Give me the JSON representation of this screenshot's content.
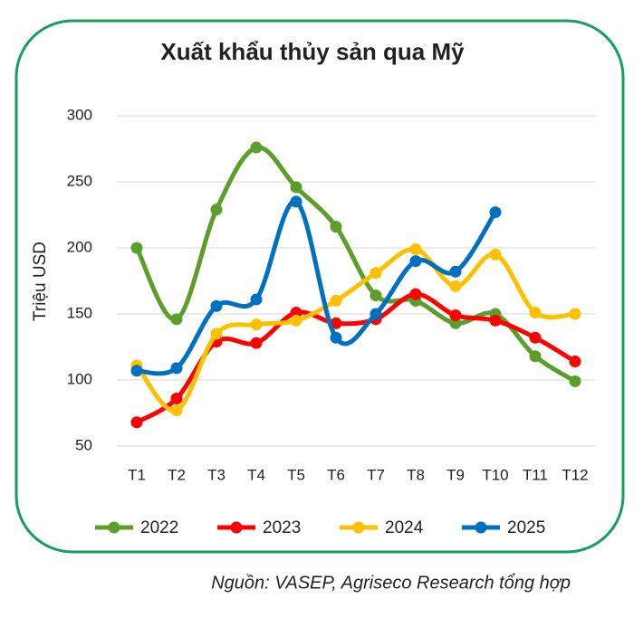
{
  "chart_data": {
    "type": "line",
    "title": "Xuất khẩu thủy sản qua Mỹ",
    "y_label": "Triệu USD",
    "source": "Nguồn: VASEP, Agriseco Research tổng hợp",
    "categories": [
      "T1",
      "T2",
      "T3",
      "T4",
      "T5",
      "T6",
      "T7",
      "T8",
      "T9",
      "T10",
      "T11",
      "T12"
    ],
    "series": [
      {
        "name": "2022",
        "color": "#5b9f2a",
        "values": [
          200,
          146,
          229,
          276,
          246,
          216,
          164,
          160,
          143,
          150,
          118,
          99
        ]
      },
      {
        "name": "2023",
        "color": "#ff0000",
        "values": [
          68,
          86,
          129,
          128,
          151,
          143,
          146,
          165,
          149,
          145,
          132,
          114
        ]
      },
      {
        "name": "2024",
        "color": "#ffc000",
        "values": [
          111,
          77,
          135,
          142,
          145,
          160,
          181,
          199,
          171,
          195,
          151,
          150
        ]
      },
      {
        "name": "2025",
        "color": "#0070c0",
        "values": [
          107,
          109,
          156,
          161,
          235,
          132,
          150,
          190,
          182,
          227,
          null,
          null
        ]
      }
    ],
    "ylim": [
      50,
      300
    ],
    "yticks": [
      50,
      100,
      150,
      200,
      250,
      300
    ],
    "grid": true,
    "legend": "bottom"
  }
}
